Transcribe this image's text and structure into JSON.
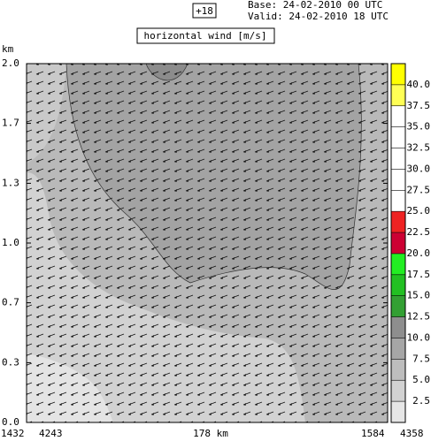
{
  "chart_data": {
    "type": "cross-section",
    "run_label": "+18",
    "base_line": "Base: 24-02-2010  00 UTC",
    "valid_line": "Valid: 24-02-2010  18 UTC",
    "title": "horizontal wind [m/s]",
    "y_unit": "km",
    "ylim": [
      0,
      2
    ],
    "yticks": [
      {
        "value": 0,
        "label": "0.0"
      },
      {
        "value": 0.333,
        "label": "0.3"
      },
      {
        "value": 0.667,
        "label": "0.7"
      },
      {
        "value": 1,
        "label": "1.0"
      },
      {
        "value": 1.333,
        "label": "1.3"
      },
      {
        "value": 1.667,
        "label": "1.7"
      },
      {
        "value": 2,
        "label": "2.0"
      }
    ],
    "bottom_labels": [
      "1432",
      "4243",
      "178 km",
      "1584",
      "4358"
    ],
    "colorbar": {
      "levels": [
        0,
        2.5,
        5,
        7.5,
        10,
        12.5,
        15,
        17.5,
        20,
        22.5,
        25,
        27.5,
        30,
        32.5,
        35,
        37.5,
        40,
        42.5
      ],
      "colors": [
        "#e6e6e6",
        "#d2d2d2",
        "#bdbdbd",
        "#a6a6a6",
        "#8e8e8e",
        "#33a033",
        "#22c022",
        "#22ee22",
        "#cc0033",
        "#ee2222",
        "#ffffff",
        "#ffffff",
        "#ffffff",
        "#ffffff",
        "#ffffff",
        "#ffff55",
        "#ffff00"
      ],
      "ticks": [
        2.5,
        {
          "value": 5,
          "label": "5.0"
        },
        7.5,
        {
          "value": 10,
          "label": "10.0"
        },
        12.5,
        {
          "value": 15,
          "label": "15.0"
        },
        17.5,
        {
          "value": 20,
          "label": "20.0"
        },
        22.5,
        {
          "value": 25,
          "label": "25.0"
        },
        27.5,
        {
          "value": 30,
          "label": "30.0"
        },
        32.5,
        {
          "value": 35,
          "label": "35.0"
        },
        37.5,
        {
          "value": 40,
          "label": "40.0"
        }
      ]
    }
  }
}
